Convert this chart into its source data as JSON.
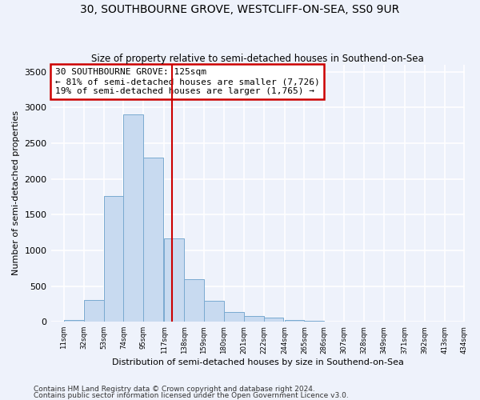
{
  "title": "30, SOUTHBOURNE GROVE, WESTCLIFF-ON-SEA, SS0 9UR",
  "subtitle": "Size of property relative to semi-detached houses in Southend-on-Sea",
  "xlabel": "Distribution of semi-detached houses by size in Southend-on-Sea",
  "ylabel": "Number of semi-detached properties",
  "footnote1": "Contains HM Land Registry data © Crown copyright and database right 2024.",
  "footnote2": "Contains public sector information licensed under the Open Government Licence v3.0.",
  "annotation_title": "30 SOUTHBOURNE GROVE: 125sqm",
  "annotation_line1": "← 81% of semi-detached houses are smaller (7,726)",
  "annotation_line2": "19% of semi-detached houses are larger (1,765) →",
  "property_size": 125,
  "bar_color": "#c8daf0",
  "bar_edge_color": "#7aaad0",
  "vline_color": "#cc0000",
  "annotation_box_color": "#cc0000",
  "background_color": "#eef2fb",
  "grid_color": "#ffffff",
  "bins": [
    11,
    32,
    53,
    74,
    95,
    117,
    138,
    159,
    180,
    201,
    222,
    244,
    265,
    286,
    307,
    328,
    349,
    371,
    392,
    413,
    434
  ],
  "counts": [
    30,
    310,
    1760,
    2900,
    2300,
    1170,
    600,
    290,
    140,
    80,
    60,
    30,
    10,
    0,
    0,
    0,
    0,
    0,
    0,
    0
  ],
  "ylim": [
    0,
    3600
  ],
  "yticks": [
    0,
    500,
    1000,
    1500,
    2000,
    2500,
    3000,
    3500
  ]
}
